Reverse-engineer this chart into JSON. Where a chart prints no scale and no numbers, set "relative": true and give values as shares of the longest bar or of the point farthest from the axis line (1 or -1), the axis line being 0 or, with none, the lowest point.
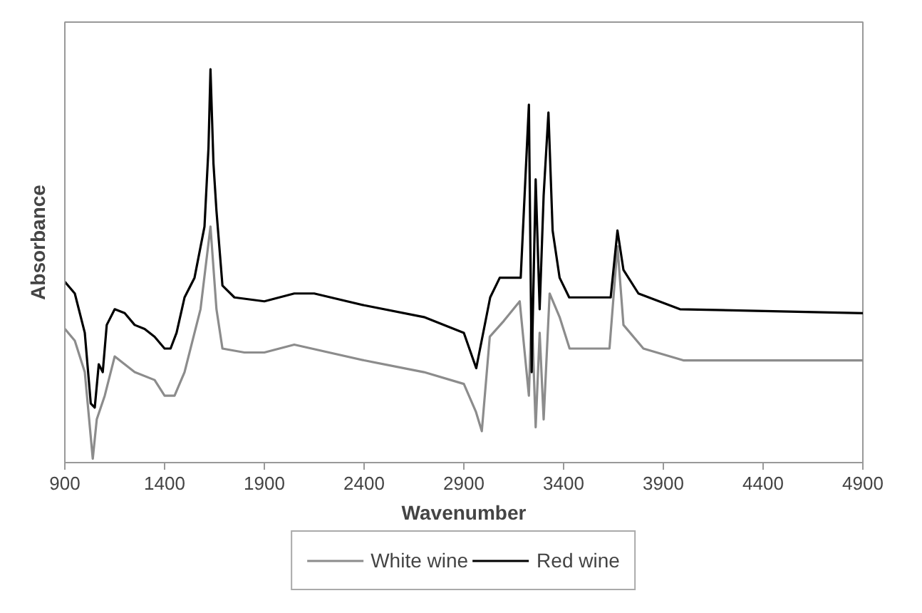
{
  "chart_data": {
    "type": "line",
    "xlabel": "Wavenumber",
    "ylabel": "Absorbance",
    "relative": true,
    "xlim": [
      900,
      4900
    ],
    "xticks": [
      900,
      1400,
      1900,
      2400,
      2900,
      3400,
      3900,
      4400,
      4900
    ],
    "tick_labels": "x",
    "grid": false,
    "legend": "bottom",
    "marker": "none",
    "line_style": "solid",
    "series": [
      {
        "name": "White wine",
        "color": "#8c8c8c",
        "x": [
          900,
          950,
          1000,
          1040,
          1060,
          1100,
          1150,
          1250,
          1350,
          1400,
          1450,
          1500,
          1580,
          1630,
          1660,
          1690,
          1800,
          1900,
          2050,
          2400,
          2700,
          2900,
          2960,
          2990,
          3030,
          3100,
          3180,
          3226,
          3240,
          3260,
          3280,
          3300,
          3330,
          3380,
          3430,
          3630,
          3670,
          3700,
          3800,
          4000,
          4900
        ],
        "values": [
          0.34,
          0.31,
          0.23,
          0.01,
          0.11,
          0.17,
          0.27,
          0.23,
          0.21,
          0.17,
          0.17,
          0.23,
          0.39,
          0.6,
          0.39,
          0.29,
          0.28,
          0.28,
          0.3,
          0.26,
          0.23,
          0.2,
          0.13,
          0.08,
          0.32,
          0.36,
          0.41,
          0.17,
          0.39,
          0.09,
          0.33,
          0.11,
          0.43,
          0.37,
          0.29,
          0.29,
          0.55,
          0.35,
          0.29,
          0.26,
          0.26
        ]
      },
      {
        "name": "Red wine",
        "color": "#000000",
        "x": [
          900,
          950,
          1000,
          1030,
          1050,
          1070,
          1090,
          1110,
          1150,
          1200,
          1250,
          1300,
          1350,
          1400,
          1430,
          1460,
          1500,
          1550,
          1600,
          1620,
          1630,
          1645,
          1660,
          1690,
          1750,
          1900,
          2050,
          2150,
          2400,
          2700,
          2900,
          2962,
          3032,
          3080,
          3185,
          3226,
          3240,
          3260,
          3280,
          3300,
          3324,
          3345,
          3380,
          3428,
          3636,
          3670,
          3700,
          3775,
          3983,
          4900
        ],
        "values": [
          0.46,
          0.43,
          0.33,
          0.15,
          0.14,
          0.25,
          0.23,
          0.35,
          0.39,
          0.38,
          0.35,
          0.34,
          0.32,
          0.29,
          0.29,
          0.33,
          0.42,
          0.47,
          0.6,
          0.8,
          1.0,
          0.76,
          0.64,
          0.45,
          0.42,
          0.41,
          0.43,
          0.43,
          0.4,
          0.37,
          0.33,
          0.24,
          0.42,
          0.47,
          0.47,
          0.91,
          0.23,
          0.72,
          0.39,
          0.68,
          0.89,
          0.59,
          0.47,
          0.42,
          0.42,
          0.59,
          0.49,
          0.43,
          0.39,
          0.38
        ]
      }
    ]
  }
}
